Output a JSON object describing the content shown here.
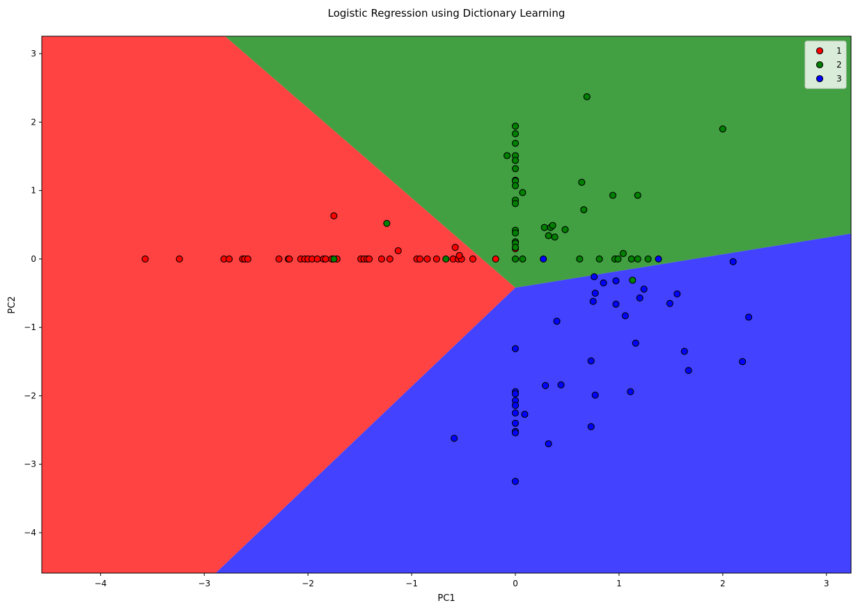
{
  "chart_data": {
    "type": "scatter",
    "title": "Logistic Regression using Dictionary Learning",
    "xlabel": "PC1",
    "ylabel": "PC2",
    "xlim": [
      -4.567,
      3.237
    ],
    "ylim": [
      -4.59,
      3.255
    ],
    "xticks": [
      -4,
      -3,
      -2,
      -1,
      0,
      1,
      2,
      3
    ],
    "yticks": [
      -4,
      -3,
      -2,
      -1,
      0,
      1,
      2,
      3
    ],
    "grid": false,
    "legend_position": "top-right",
    "decision_regions": [
      {
        "class": "1",
        "color": "#ff4242",
        "polygon": [
          [
            -4.567,
            3.255
          ],
          [
            -2.8,
            3.255
          ],
          [
            0,
            -0.42
          ],
          [
            -2.89,
            -4.59
          ],
          [
            -4.567,
            -4.59
          ]
        ]
      },
      {
        "class": "2",
        "color": "#42a042",
        "polygon": [
          [
            -2.8,
            3.255
          ],
          [
            3.237,
            3.255
          ],
          [
            3.237,
            0.37
          ],
          [
            0,
            -0.42
          ]
        ]
      },
      {
        "class": "3",
        "color": "#4242ff",
        "polygon": [
          [
            0,
            -0.42
          ],
          [
            3.237,
            0.37
          ],
          [
            3.237,
            -4.59
          ],
          [
            -2.89,
            -4.59
          ]
        ]
      }
    ],
    "series": [
      {
        "name": "1",
        "color": "#ff0000",
        "points": [
          [
            -3.57,
            0
          ],
          [
            -3.24,
            0
          ],
          [
            -2.81,
            0
          ],
          [
            -2.76,
            0
          ],
          [
            -2.63,
            0
          ],
          [
            -2.61,
            0
          ],
          [
            -2.58,
            0
          ],
          [
            -2.28,
            0
          ],
          [
            -2.19,
            0
          ],
          [
            -2.18,
            0
          ],
          [
            -2.07,
            0
          ],
          [
            -2.03,
            0
          ],
          [
            -2.0,
            0
          ],
          [
            -1.96,
            0
          ],
          [
            -1.91,
            0
          ],
          [
            -1.85,
            0
          ],
          [
            -1.83,
            0
          ],
          [
            -1.77,
            0
          ],
          [
            -1.72,
            0
          ],
          [
            -1.49,
            0
          ],
          [
            -1.46,
            0
          ],
          [
            -1.43,
            0
          ],
          [
            -1.41,
            0
          ],
          [
            -1.29,
            0
          ],
          [
            -1.21,
            0
          ],
          [
            -0.95,
            0
          ],
          [
            -0.92,
            0
          ],
          [
            -0.85,
            0
          ],
          [
            -0.76,
            0
          ],
          [
            -0.6,
            0
          ],
          [
            -0.55,
            0
          ],
          [
            -0.52,
            0
          ],
          [
            -0.41,
            0
          ],
          [
            -0.19,
            0
          ],
          [
            -1.75,
            0.63
          ],
          [
            -1.13,
            0.12
          ],
          [
            -0.58,
            0.17
          ],
          [
            -0.54,
            0.05
          ],
          [
            0,
            0.15
          ]
        ]
      },
      {
        "name": "2",
        "color": "#008000",
        "points": [
          [
            0,
            1.94
          ],
          [
            0,
            1.83
          ],
          [
            0,
            1.69
          ],
          [
            0,
            1.51
          ],
          [
            0,
            1.44
          ],
          [
            0,
            1.32
          ],
          [
            0,
            1.15
          ],
          [
            0,
            1.14
          ],
          [
            0,
            1.07
          ],
          [
            0,
            0.86
          ],
          [
            0,
            0.81
          ],
          [
            0,
            0.42
          ],
          [
            0,
            0.38
          ],
          [
            0,
            0.25
          ],
          [
            0,
            0.23
          ],
          [
            0,
            0.17
          ],
          [
            0,
            0
          ],
          [
            -0.08,
            1.51
          ],
          [
            0.07,
            0.97
          ],
          [
            0.64,
            1.12
          ],
          [
            0.94,
            0.93
          ],
          [
            1.18,
            0.93
          ],
          [
            0.66,
            0.72
          ],
          [
            0.28,
            0.46
          ],
          [
            0.34,
            0.46
          ],
          [
            0.36,
            0.49
          ],
          [
            0.48,
            0.43
          ],
          [
            0.32,
            0.34
          ],
          [
            0.38,
            0.32
          ],
          [
            1.04,
            0.08
          ],
          [
            0.07,
            0
          ],
          [
            0.62,
            0
          ],
          [
            0.81,
            0
          ],
          [
            0.96,
            0
          ],
          [
            0.99,
            0
          ],
          [
            1.12,
            0
          ],
          [
            1.18,
            0
          ],
          [
            1.28,
            0
          ],
          [
            1.13,
            -0.31
          ],
          [
            0.69,
            2.37
          ],
          [
            2.0,
            1.9
          ],
          [
            -1.24,
            0.52
          ],
          [
            -1.75,
            0
          ],
          [
            -0.67,
            0
          ]
        ]
      },
      {
        "name": "3",
        "color": "#0000ff",
        "points": [
          [
            0.27,
            0
          ],
          [
            1.38,
            0
          ],
          [
            0.76,
            -0.26
          ],
          [
            0.85,
            -0.35
          ],
          [
            0.97,
            -0.32
          ],
          [
            0.77,
            -0.5
          ],
          [
            0.75,
            -0.62
          ],
          [
            0.97,
            -0.66
          ],
          [
            1.24,
            -0.44
          ],
          [
            1.2,
            -0.57
          ],
          [
            1.56,
            -0.51
          ],
          [
            1.49,
            -0.65
          ],
          [
            1.06,
            -0.83
          ],
          [
            2.1,
            -0.04
          ],
          [
            2.25,
            -0.85
          ],
          [
            0.4,
            -0.91
          ],
          [
            1.16,
            -1.23
          ],
          [
            0.73,
            -1.49
          ],
          [
            1.63,
            -1.35
          ],
          [
            1.67,
            -1.63
          ],
          [
            2.19,
            -1.5
          ],
          [
            1.11,
            -1.94
          ],
          [
            0.29,
            -1.85
          ],
          [
            0.44,
            -1.84
          ],
          [
            0.77,
            -1.99
          ],
          [
            0.09,
            -2.27
          ],
          [
            0.73,
            -2.45
          ],
          [
            0.32,
            -2.7
          ],
          [
            -0.59,
            -2.62
          ],
          [
            0,
            -1.31
          ],
          [
            0,
            -1.94
          ],
          [
            0,
            -1.97
          ],
          [
            0,
            -2.07
          ],
          [
            0,
            -2.14
          ],
          [
            0,
            -2.25
          ],
          [
            0,
            -2.4
          ],
          [
            0,
            -2.52
          ],
          [
            0,
            -2.54
          ],
          [
            0,
            -3.25
          ]
        ]
      }
    ]
  }
}
